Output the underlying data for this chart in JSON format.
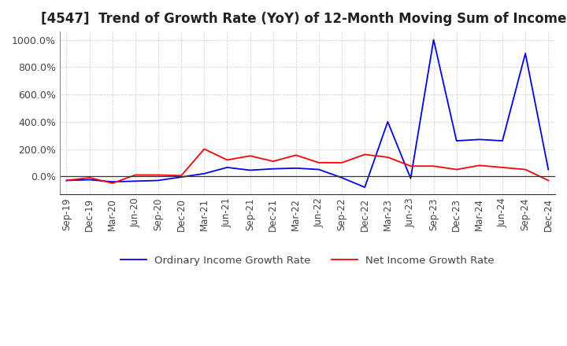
{
  "title": "[4547]  Trend of Growth Rate (YoY) of 12-Month Moving Sum of Incomes",
  "title_fontsize": 12,
  "background_color": "#ffffff",
  "grid_color": "#bbbbbb",
  "legend_labels": [
    "Ordinary Income Growth Rate",
    "Net Income Growth Rate"
  ],
  "line_colors": [
    "blue",
    "red"
  ],
  "x_labels": [
    "Sep-19",
    "Dec-19",
    "Mar-20",
    "Jun-20",
    "Sep-20",
    "Dec-20",
    "Mar-21",
    "Jun-21",
    "Sep-21",
    "Dec-21",
    "Mar-22",
    "Jun-22",
    "Sep-22",
    "Dec-22",
    "Mar-23",
    "Jun-23",
    "Sep-23",
    "Dec-23",
    "Mar-24",
    "Jun-24",
    "Sep-24",
    "Dec-24"
  ],
  "ordinary_income": [
    -30,
    -25,
    -40,
    -35,
    -30,
    -5,
    20,
    65,
    45,
    55,
    60,
    50,
    -10,
    -80,
    400,
    -15,
    1000,
    260,
    270,
    260,
    900,
    50
  ],
  "net_income": [
    -30,
    -10,
    -50,
    10,
    10,
    5,
    200,
    120,
    150,
    110,
    155,
    100,
    100,
    160,
    140,
    75,
    75,
    50,
    80,
    65,
    50,
    -30
  ],
  "ylim": [
    -130,
    1060
  ],
  "yticks": [
    0,
    200,
    400,
    600,
    800,
    1000
  ],
  "yticklabels": [
    "0.0%",
    "200.0%",
    "400.0%",
    "600.0%",
    "800.0%",
    "1000.0%"
  ]
}
